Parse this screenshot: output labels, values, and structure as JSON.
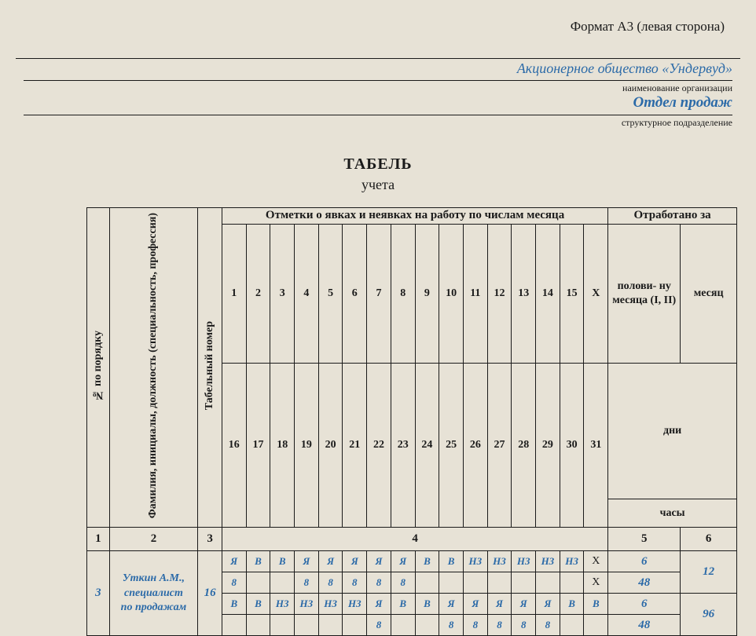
{
  "format": "Формат А3 (левая сторона)",
  "organization": "Акционерное общество «Ундервуд»",
  "org_caption": "наименование организации",
  "department": "Отдел продаж",
  "dept_caption": "структурное подразделение",
  "title_main": "ТАБЕЛЬ",
  "title_sub": "учета",
  "headers": {
    "num": "№ по порядку",
    "fio": "Фамилия, инициалы, должность (специальность, профессия)",
    "tabnum": "Табельный номер",
    "attendance": "Отметки о явках и неявках на работу по числам месяца",
    "worked": "Отработано за",
    "half": "полови- ну месяца (I, II)",
    "month": "месяц",
    "days": "дни",
    "hours": "часы",
    "d1": "1",
    "d2": "2",
    "d3": "3",
    "d4": "4",
    "d5": "5",
    "d6": "6",
    "d7": "7",
    "d8": "8",
    "d9": "9",
    "d10": "10",
    "d11": "11",
    "d12": "12",
    "d13": "13",
    "d14": "14",
    "d15": "15",
    "dX": "X",
    "d16": "16",
    "d17": "17",
    "d18": "18",
    "d19": "19",
    "d20": "20",
    "d21": "21",
    "d22": "22",
    "d23": "23",
    "d24": "24",
    "d25": "25",
    "d26": "26",
    "d27": "27",
    "d28": "28",
    "d29": "29",
    "d30": "30",
    "d31": "31"
  },
  "idx": {
    "c1": "1",
    "c2": "2",
    "c3": "3",
    "c4": "4",
    "c5": "5",
    "c6": "6"
  },
  "row": {
    "num": "3",
    "name": "Уткин А.М., специалист по продажам",
    "tabnum": "16",
    "r1": {
      "d1": "Я",
      "d2": "В",
      "d3": "В",
      "d4": "Я",
      "d5": "Я",
      "d6": "Я",
      "d7": "Я",
      "d8": "Я",
      "d9": "В",
      "d10": "В",
      "d11": "НЗ",
      "d12": "НЗ",
      "d13": "НЗ",
      "d14": "НЗ",
      "d15": "НЗ",
      "dX": "X",
      "half": "6",
      "month": "12"
    },
    "r2": {
      "d1": "8",
      "d2": "",
      "d3": "",
      "d4": "8",
      "d5": "8",
      "d6": "8",
      "d7": "8",
      "d8": "8",
      "d9": "",
      "d10": "",
      "d11": "",
      "d12": "",
      "d13": "",
      "d14": "",
      "d15": "",
      "dX": "X",
      "half": "48"
    },
    "r3": {
      "d1": "В",
      "d2": "В",
      "d3": "НЗ",
      "d4": "НЗ",
      "d5": "НЗ",
      "d6": "НЗ",
      "d7": "Я",
      "d8": "В",
      "d9": "В",
      "d10": "Я",
      "d11": "Я",
      "d12": "Я",
      "d13": "Я",
      "d14": "Я",
      "d15": "В",
      "d16": "В",
      "half": "6",
      "month": "96"
    },
    "r4": {
      "d1": "",
      "d2": "",
      "d3": "",
      "d4": "",
      "d5": "",
      "d6": "",
      "d7": "8",
      "d8": "",
      "d9": "",
      "d10": "8",
      "d11": "8",
      "d12": "8",
      "d13": "8",
      "d14": "8",
      "d15": "",
      "d16": "",
      "half": "48"
    }
  }
}
